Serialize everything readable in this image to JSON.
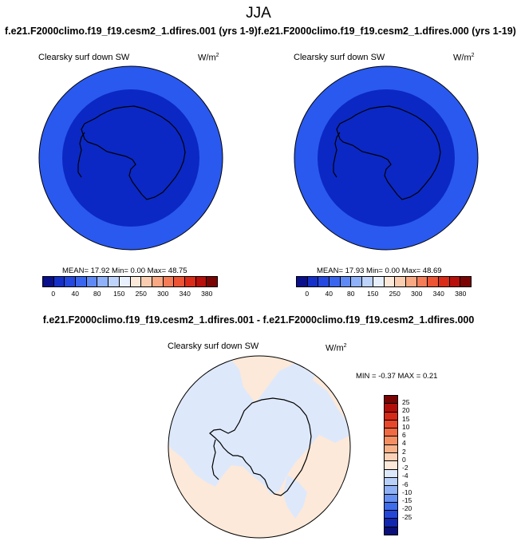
{
  "title": "JJA",
  "left_case": "f.e21.F2000climo.f19_f19.cesm2_1.dfires.001 (yrs 1-9)",
  "right_case": "f.e21.F2000climo.f19_f19.cesm2_1.dfires.000 (yrs 1-19)",
  "diff_title": "f.e21.F2000climo.f19_f19.cesm2_1.dfires.001 - f.e21.F2000climo.f19_f19.cesm2_1.dfires.000",
  "variable": "Clearsky surf down SW",
  "units_base": "W/m",
  "units_exp": "2",
  "left_stats": "MEAN=  17.92  Min=   0.00  Max=  48.75",
  "right_stats": "MEAN=  17.93  Min=   0.00  Max=  48.69",
  "diff_stats": "MIN =  -0.37 MAX =   0.21",
  "colors": {
    "outer_ring": "#2a59ef",
    "inner_disk": "#0b28c4",
    "diff_positive": "#fde9d9",
    "diff_negative": "#dde9fb"
  },
  "main_colorbar": {
    "colors": [
      "#0a0f8c",
      "#1530c8",
      "#2448e0",
      "#3a66ef",
      "#5f8af6",
      "#8fb1fa",
      "#bdd3fc",
      "#e8f0fe",
      "#fde9d9",
      "#fbcdb0",
      "#f8a882",
      "#f47d58",
      "#ec5434",
      "#d92b18",
      "#b80f0a",
      "#7a0403"
    ],
    "ticks": [
      "0",
      "40",
      "80",
      "150",
      "250",
      "300",
      "340",
      "380"
    ]
  },
  "diff_colorbar": {
    "colors": [
      "#7a0403",
      "#b30f0a",
      "#d42a17",
      "#e8472b",
      "#f06a43",
      "#f48f63",
      "#f8b28a",
      "#fbd2b7",
      "#fde9d9",
      "#dde9fb",
      "#b9d0f9",
      "#90b1f6",
      "#6690f1",
      "#3e6cea",
      "#2547d8",
      "#1127b0",
      "#0a0f7a"
    ],
    "ticks": [
      "25",
      "20",
      "15",
      "10",
      "6",
      "4",
      "2",
      "0",
      "-2",
      "-4",
      "-6",
      "-10",
      "-15",
      "-20",
      "-25"
    ]
  },
  "coastline_icon": "antarctica-coastline"
}
